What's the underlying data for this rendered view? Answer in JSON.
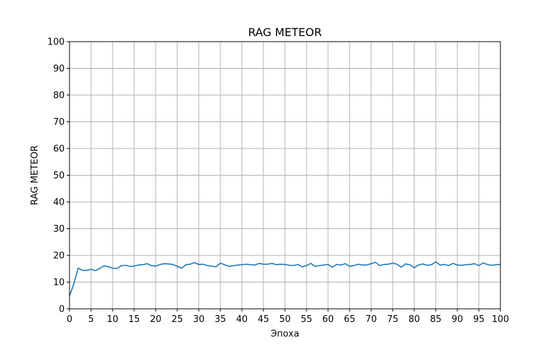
{
  "chart_data": {
    "type": "line",
    "title": "RAG METEOR",
    "xlabel": "Эпоха",
    "ylabel": "RAG METEOR",
    "xlim": [
      0,
      100
    ],
    "ylim": [
      0,
      100
    ],
    "xticks": [
      0,
      5,
      10,
      15,
      20,
      25,
      30,
      35,
      40,
      45,
      50,
      55,
      60,
      65,
      70,
      75,
      80,
      85,
      90,
      95,
      100
    ],
    "yticks": [
      0,
      10,
      20,
      30,
      40,
      50,
      60,
      70,
      80,
      90,
      100
    ],
    "grid": true,
    "colors": {
      "line": "#1f77b4",
      "grid": "#b0b0b0"
    },
    "series": [
      {
        "x": [
          0,
          1,
          2,
          3,
          4,
          5,
          6,
          7,
          8,
          9,
          10,
          11,
          12,
          13,
          14,
          15,
          16,
          17,
          18,
          19,
          20,
          21,
          22,
          23,
          24,
          25,
          26,
          27,
          28,
          29,
          30,
          31,
          32,
          33,
          34,
          35,
          36,
          37,
          38,
          39,
          40,
          41,
          42,
          43,
          44,
          45,
          46,
          47,
          48,
          49,
          50,
          51,
          52,
          53,
          54,
          55,
          56,
          57,
          58,
          59,
          60,
          61,
          62,
          63,
          64,
          65,
          66,
          67,
          68,
          69,
          70,
          71,
          72,
          73,
          74,
          75,
          76,
          77,
          78,
          79,
          80,
          81,
          82,
          83,
          84,
          85,
          86,
          87,
          88,
          89,
          90,
          91,
          92,
          93,
          94,
          95,
          96,
          97,
          98,
          99,
          100
        ],
        "values": [
          4.8,
          9.3,
          15.2,
          14.4,
          14.4,
          14.8,
          14.3,
          15.1,
          16.1,
          15.8,
          15.2,
          15.1,
          16.1,
          16.3,
          15.9,
          16.0,
          16.4,
          16.5,
          16.9,
          16.2,
          16.0,
          16.6,
          16.9,
          16.8,
          16.6,
          15.9,
          15.2,
          16.5,
          16.7,
          17.3,
          16.6,
          16.7,
          16.2,
          16.0,
          15.7,
          17.1,
          16.5,
          15.9,
          16.1,
          16.4,
          16.5,
          16.7,
          16.5,
          16.4,
          17.0,
          16.7,
          16.7,
          17.0,
          16.5,
          16.7,
          16.6,
          16.3,
          16.2,
          16.6,
          15.7,
          16.2,
          17.0,
          15.9,
          16.2,
          16.4,
          16.6,
          15.6,
          16.6,
          16.4,
          16.9,
          15.9,
          16.2,
          16.7,
          16.4,
          16.4,
          16.9,
          17.4,
          16.2,
          16.6,
          16.7,
          17.1,
          16.7,
          15.6,
          16.8,
          16.5,
          15.4,
          16.4,
          16.8,
          16.3,
          16.5,
          17.6,
          16.4,
          16.6,
          16.2,
          17.0,
          16.4,
          16.3,
          16.5,
          16.6,
          16.9,
          16.2,
          17.2,
          16.6,
          16.3,
          16.5,
          16.6
        ]
      }
    ]
  }
}
